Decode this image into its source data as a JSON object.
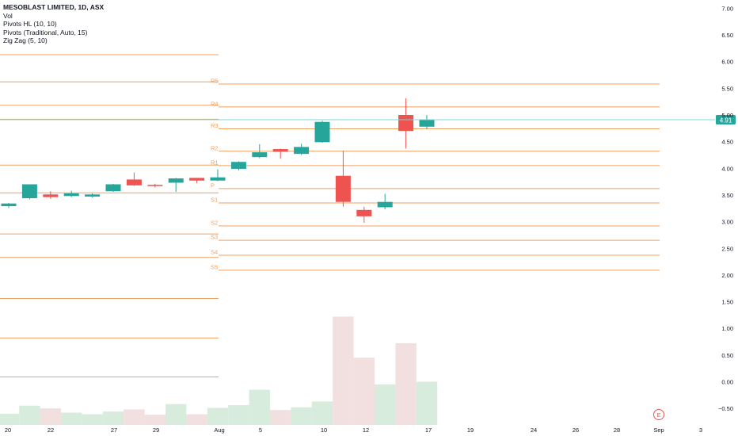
{
  "legend": {
    "title": "MESOBLAST LIMITED, 1D, ASX",
    "vol": "Vol",
    "pivots_hl": "Pivots HL (10, 10)",
    "pivots_trad": "Pivots (Traditional, Auto, 15)",
    "zigzag": "Zig Zag (5, 10)"
  },
  "last_price_label": "4.91",
  "earnings_marker": "E",
  "colors": {
    "up": "#26a69a",
    "down": "#ef5350",
    "pivot": "#f0a060",
    "last_price_line": "#7fd6d6",
    "vol_up": "#d7ecdd",
    "vol_down": "#f2dfdf"
  },
  "chart_data": {
    "type": "candlestick",
    "title": "MESOBLAST LIMITED, 1D, ASX",
    "y_ticks": [
      "7.00",
      "6.50",
      "6.00",
      "5.50",
      "5.00",
      "4.50",
      "4.00",
      "3.50",
      "3.00",
      "2.50",
      "2.00",
      "1.50",
      "1.00",
      "0.50",
      "0.00",
      "−0.50"
    ],
    "x_ticks": [
      "20",
      "22",
      "27",
      "29",
      "Aug",
      "5",
      "10",
      "12",
      "17",
      "19",
      "24",
      "26",
      "28",
      "Sep",
      "3"
    ],
    "ylim": [
      -0.7,
      7.1
    ],
    "candles": [
      {
        "date": "Jul 20",
        "open": 3.29,
        "high": 3.35,
        "low": 3.26,
        "close": 3.34
      },
      {
        "date": "Jul 21",
        "open": 3.44,
        "high": 3.7,
        "low": 3.42,
        "close": 3.7
      },
      {
        "date": "Jul 22",
        "open": 3.51,
        "high": 3.57,
        "low": 3.43,
        "close": 3.46
      },
      {
        "date": "Jul 23",
        "open": 3.48,
        "high": 3.58,
        "low": 3.46,
        "close": 3.53
      },
      {
        "date": "Jul 24",
        "open": 3.47,
        "high": 3.53,
        "low": 3.45,
        "close": 3.51
      },
      {
        "date": "Jul 27",
        "open": 3.57,
        "high": 3.71,
        "low": 3.56,
        "close": 3.7
      },
      {
        "date": "Jul 28",
        "open": 3.79,
        "high": 3.92,
        "low": 3.67,
        "close": 3.68
      },
      {
        "date": "Jul 29",
        "open": 3.69,
        "high": 3.71,
        "low": 3.64,
        "close": 3.67
      },
      {
        "date": "Jul 30",
        "open": 3.73,
        "high": 3.82,
        "low": 3.56,
        "close": 3.81
      },
      {
        "date": "Jul 31",
        "open": 3.82,
        "high": 3.82,
        "low": 3.72,
        "close": 3.77
      },
      {
        "date": "Aug 3",
        "open": 3.77,
        "high": 3.98,
        "low": 3.76,
        "close": 3.83
      },
      {
        "date": "Aug 4",
        "open": 3.99,
        "high": 4.13,
        "low": 3.96,
        "close": 4.12
      },
      {
        "date": "Aug 5",
        "open": 4.21,
        "high": 4.45,
        "low": 4.19,
        "close": 4.3
      },
      {
        "date": "Aug 6",
        "open": 4.36,
        "high": 4.37,
        "low": 4.18,
        "close": 4.31
      },
      {
        "date": "Aug 7",
        "open": 4.27,
        "high": 4.46,
        "low": 4.25,
        "close": 4.4
      },
      {
        "date": "Aug 10",
        "open": 4.49,
        "high": 4.89,
        "low": 4.48,
        "close": 4.87
      },
      {
        "date": "Aug 11",
        "open": 3.86,
        "high": 4.33,
        "low": 3.28,
        "close": 3.37
      },
      {
        "date": "Aug 12",
        "open": 3.22,
        "high": 3.28,
        "low": 2.98,
        "close": 3.1
      },
      {
        "date": "Aug 13",
        "open": 3.27,
        "high": 3.52,
        "low": 3.23,
        "close": 3.37
      },
      {
        "date": "Aug 14",
        "open": 5.0,
        "high": 5.31,
        "low": 4.37,
        "close": 4.7
      },
      {
        "date": "Aug 17",
        "open": 4.78,
        "high": 5.0,
        "low": 4.73,
        "close": 4.91
      }
    ],
    "volume": [
      {
        "date": "Jul 20",
        "value": -0.6,
        "dir": "up"
      },
      {
        "date": "Jul 21",
        "value": -0.45,
        "dir": "up"
      },
      {
        "date": "Jul 22",
        "value": -0.5,
        "dir": "down"
      },
      {
        "date": "Jul 23",
        "value": -0.58,
        "dir": "up"
      },
      {
        "date": "Jul 24",
        "value": -0.61,
        "dir": "up"
      },
      {
        "date": "Jul 27",
        "value": -0.56,
        "dir": "up"
      },
      {
        "date": "Jul 28",
        "value": -0.52,
        "dir": "down"
      },
      {
        "date": "Jul 29",
        "value": -0.62,
        "dir": "down"
      },
      {
        "date": "Jul 30",
        "value": -0.42,
        "dir": "up"
      },
      {
        "date": "Jul 31",
        "value": -0.61,
        "dir": "down"
      },
      {
        "date": "Aug 3",
        "value": -0.49,
        "dir": "up"
      },
      {
        "date": "Aug 4",
        "value": -0.44,
        "dir": "up"
      },
      {
        "date": "Aug 5",
        "value": -0.15,
        "dir": "up"
      },
      {
        "date": "Aug 6",
        "value": -0.53,
        "dir": "down"
      },
      {
        "date": "Aug 7",
        "value": -0.48,
        "dir": "up"
      },
      {
        "date": "Aug 10",
        "value": -0.37,
        "dir": "up"
      },
      {
        "date": "Aug 11",
        "value": 1.22,
        "dir": "down"
      },
      {
        "date": "Aug 12",
        "value": 0.45,
        "dir": "down"
      },
      {
        "date": "Aug 13",
        "value": -0.05,
        "dir": "up"
      },
      {
        "date": "Aug 14",
        "value": 0.72,
        "dir": "down"
      },
      {
        "date": "Aug 17",
        "value": 0.0,
        "dir": "up"
      }
    ],
    "pivot_levels_current": [
      {
        "label": "R5",
        "value": 5.58
      },
      {
        "label": "R4",
        "value": 5.15
      },
      {
        "label": "R3",
        "value": 4.74
      },
      {
        "label": "R2",
        "value": 4.32
      },
      {
        "label": "R1",
        "value": 4.05
      },
      {
        "label": "P",
        "value": 3.62
      },
      {
        "label": "S1",
        "value": 3.35
      },
      {
        "label": "S2",
        "value": 2.92
      },
      {
        "label": "S3",
        "value": 2.65
      },
      {
        "label": "S4",
        "value": 2.37
      },
      {
        "label": "S5",
        "value": 2.09
      }
    ],
    "pivot_levels_previous": [
      6.13,
      5.62,
      5.18,
      4.92,
      4.06,
      3.54,
      2.77,
      2.33,
      1.56,
      0.82,
      0.09
    ],
    "last_price": 4.91
  }
}
